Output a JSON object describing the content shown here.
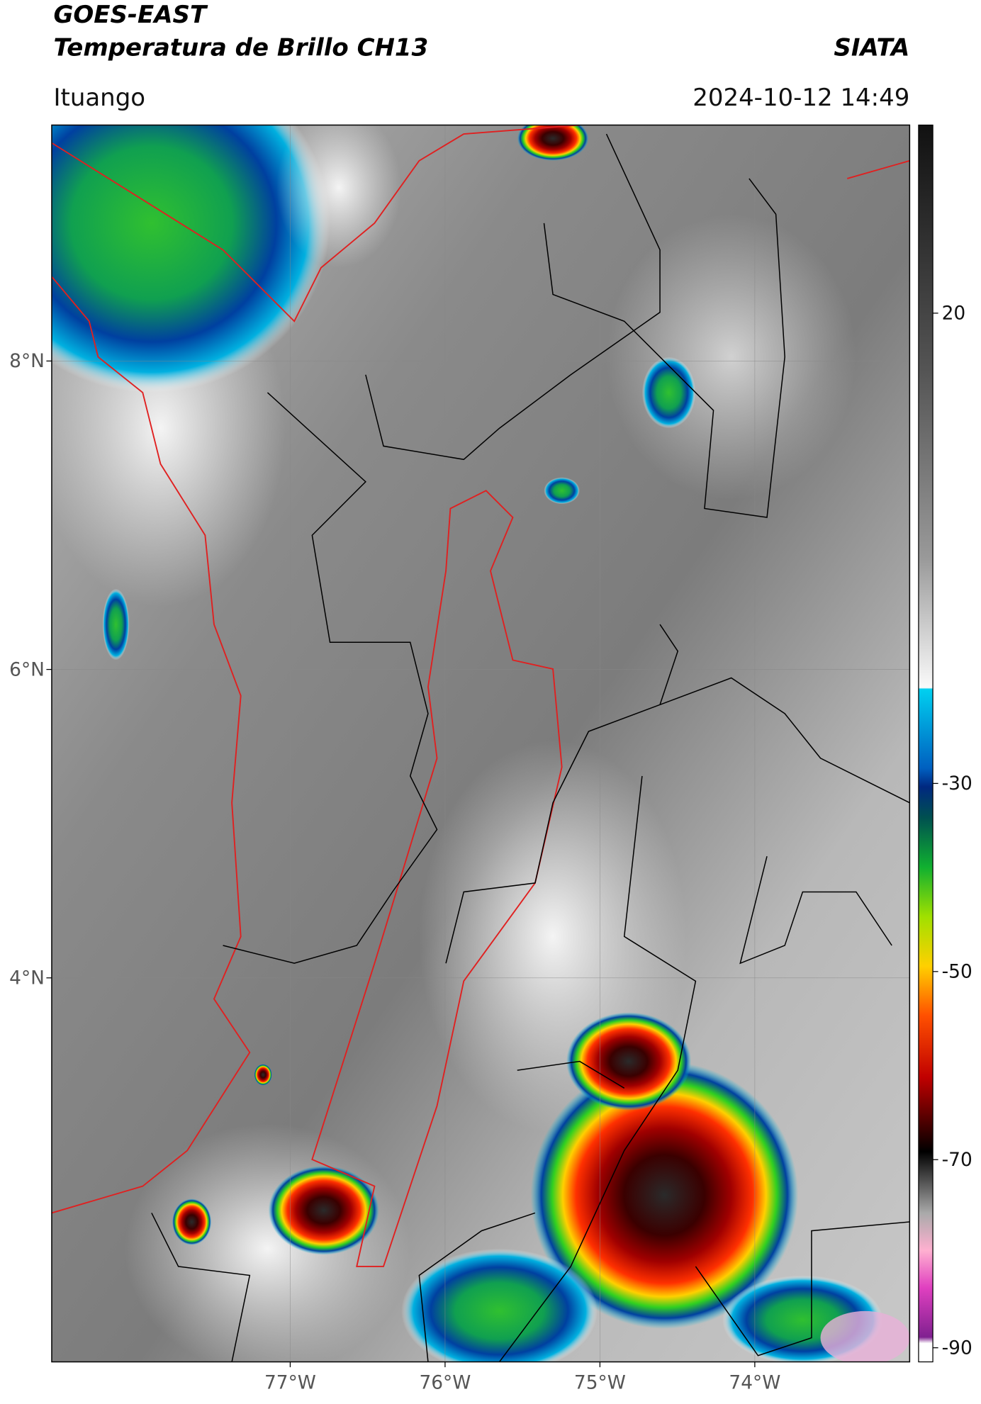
{
  "header": {
    "satellite": "GOES-EAST",
    "product": "Temperatura de Brillo CH13",
    "agency": "SIATA",
    "location": "Ituango",
    "datetime": "2024-10-12 14:49"
  },
  "map": {
    "xlim": [
      -78.54,
      -73.0
    ],
    "ylim": [
      1.51,
      9.53
    ],
    "xticks": [
      {
        "value": -77,
        "label": "77°W"
      },
      {
        "value": -76,
        "label": "76°W"
      },
      {
        "value": -75,
        "label": "75°W"
      },
      {
        "value": -74,
        "label": "74°W"
      }
    ],
    "yticks": [
      {
        "value": 8,
        "label": "8°N"
      },
      {
        "value": 6,
        "label": "6°N"
      },
      {
        "value": 4,
        "label": "4°N"
      }
    ],
    "grid": true
  },
  "colorbar": {
    "clim": [
      -91.5,
      40
    ],
    "ticks": [
      20,
      -30,
      -50,
      -70,
      -90
    ]
  }
}
